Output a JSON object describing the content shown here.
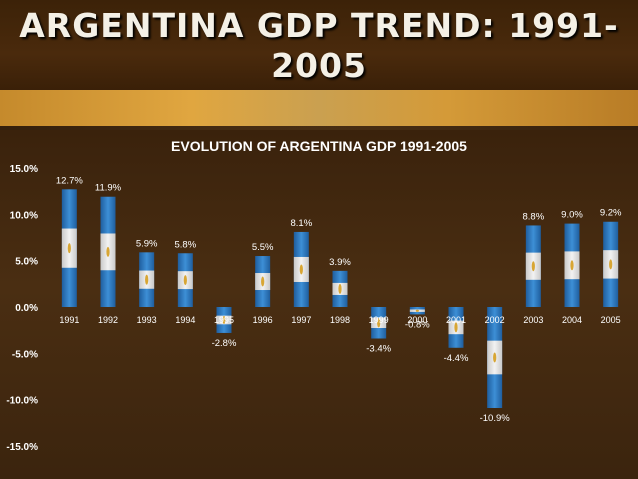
{
  "slide": {
    "title_line1": "ARGENTINA GDP TREND: 1991-",
    "title_line2": "2005"
  },
  "colors": {
    "bar_blue": "#3d8fd6",
    "bar_white": "#f2f2f2",
    "sun_gold": "#d8a634",
    "gold_band": "#d49a38"
  },
  "chart_data": {
    "type": "bar",
    "title": "EVOLUTION OF ARGENTINA GDP 1991-2005",
    "xlabel": "",
    "ylabel": "",
    "categories": [
      "1991",
      "1992",
      "1993",
      "1994",
      "1995",
      "1996",
      "1997",
      "1998",
      "1999",
      "2000",
      "2001",
      "2002",
      "2003",
      "2004",
      "2005"
    ],
    "values": [
      12.7,
      11.9,
      5.9,
      5.8,
      -2.8,
      5.5,
      8.1,
      3.9,
      -3.4,
      -0.8,
      -4.4,
      -10.9,
      8.8,
      9.0,
      9.2
    ],
    "data_labels": [
      "12.7%",
      "11.9%",
      "5.9%",
      "5.8%",
      "-2.8%",
      "5.5%",
      "8.1%",
      "3.9%",
      "-3.4%",
      "-0.8%",
      "-4.4%",
      "-10.9%",
      "8.8%",
      "9.0%",
      "9.2%"
    ],
    "ylim": [
      -15,
      15
    ],
    "yticks": [
      15,
      10,
      5,
      0,
      -5,
      -10,
      -15
    ],
    "ytick_labels": [
      "15.0%",
      "10.0%",
      "5.0%",
      "0.0%",
      "-5.0%",
      "-10.0%",
      "-15.0%"
    ],
    "grid": false,
    "legend": "none"
  }
}
